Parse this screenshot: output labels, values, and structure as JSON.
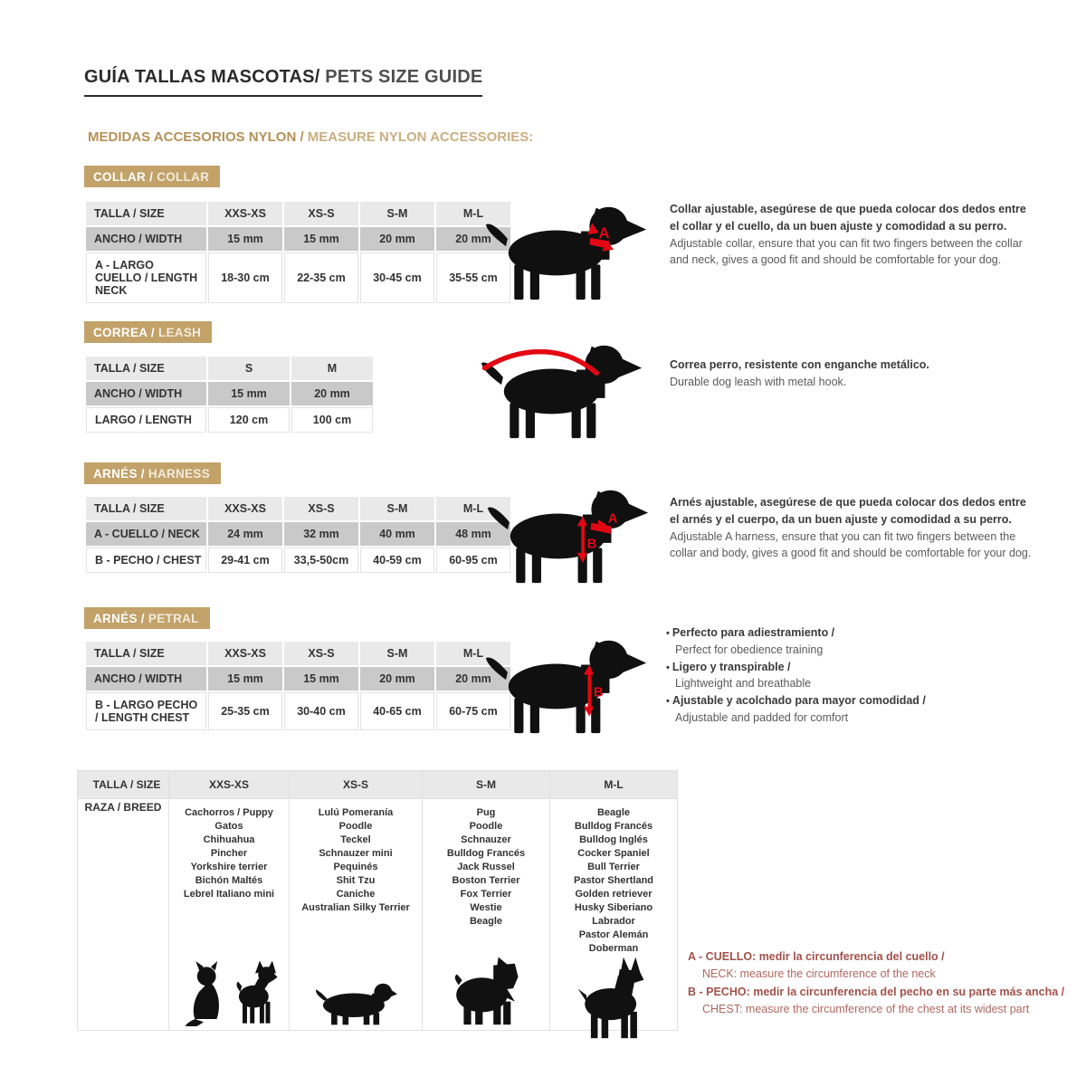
{
  "page": {
    "title_es": "GUÍA TALLAS MASCOTAS/",
    "title_en": " PETS SIZE GUIDE",
    "subtitle_es": "MEDIDAS ACCESORIOS NYLON /",
    "subtitle_en": " MEASURE NYLON ACCESSORIES:"
  },
  "colors": {
    "accent_tan": "#c2a269",
    "marker_red": "#e30613",
    "note_red": "#a2524b",
    "row_shade": "#c9c9c9",
    "row_head": "#e9e9e9"
  },
  "sections": {
    "collar": {
      "badge_es": "COLLAR /",
      "badge_en": " COLLAR",
      "marker": "A",
      "table": {
        "size_label": "TALLA / SIZE",
        "sizes": [
          "XXS-XS",
          "XS-S",
          "S-M",
          "M-L"
        ],
        "rows": [
          {
            "label": "ANCHO / WIDTH",
            "cells": [
              "15 mm",
              "15 mm",
              "20 mm",
              "20 mm"
            ]
          },
          {
            "label": "A - LARGO CUELLO / LENGTH NECK",
            "cells": [
              "18-30 cm",
              "22-35 cm",
              "30-45 cm",
              "35-55 cm"
            ]
          }
        ]
      },
      "desc_es": "Collar ajustable, asegúrese de que pueda colocar dos dedos entre el collar y el cuello, da un buen ajuste y comodidad a su perro.",
      "desc_en": "Adjustable collar, ensure that you can fit two fingers between the collar and neck, gives a good fit and should be comfortable for your dog."
    },
    "leash": {
      "badge_es": "CORREA /",
      "badge_en": " LEASH",
      "table": {
        "size_label": "TALLA / SIZE",
        "sizes": [
          "S",
          "M"
        ],
        "rows": [
          {
            "label": "ANCHO / WIDTH",
            "cells": [
              "15 mm",
              "20 mm"
            ]
          },
          {
            "label": "LARGO / LENGTH",
            "cells": [
              "120 cm",
              "100 cm"
            ]
          }
        ]
      },
      "desc_es": "Correa perro, resistente con enganche metálico.",
      "desc_en": "Durable dog leash with metal hook."
    },
    "harness": {
      "badge_es": "ARNÉS /",
      "badge_en": " HARNESS",
      "marker_a": "A",
      "marker_b": "B",
      "table": {
        "size_label": "TALLA / SIZE",
        "sizes": [
          "XXS-XS",
          "XS-S",
          "S-M",
          "M-L"
        ],
        "rows": [
          {
            "label": "A - CUELLO / NECK",
            "cells": [
              "24 mm",
              "32 mm",
              "40 mm",
              "48 mm"
            ]
          },
          {
            "label": "B - PECHO / CHEST",
            "cells": [
              "29-41 cm",
              "33,5-50cm",
              "40-59 cm",
              "60-95 cm"
            ]
          }
        ]
      },
      "desc_es": "Arnés ajustable, asegúrese de que pueda colocar dos dedos entre el arnés y el cuerpo, da un buen ajuste y comodidad a su perro.",
      "desc_en": "Adjustable A harness, ensure that you can fit two fingers between the collar and body, gives a good fit and should be comfortable for your dog."
    },
    "petral": {
      "badge_es": "ARNÉS /",
      "badge_en": " PETRAL",
      "marker": "B",
      "table": {
        "size_label": "TALLA / SIZE",
        "sizes": [
          "XXS-XS",
          "XS-S",
          "S-M",
          "M-L"
        ],
        "rows": [
          {
            "label": "ANCHO / WIDTH",
            "cells": [
              "15 mm",
              "15 mm",
              "20 mm",
              "20 mm"
            ]
          },
          {
            "label": "B - LARGO PECHO / LENGTH CHEST",
            "cells": [
              "25-35 cm",
              "30-40 cm",
              "40-65 cm",
              "60-75 cm"
            ]
          }
        ]
      },
      "bullets": [
        {
          "es": "Perfecto para adiestramiento /",
          "en": "Perfect for obedience training"
        },
        {
          "es": "Ligero y transpirable /",
          "en": "Lightweight and breathable"
        },
        {
          "es": "Ajustable y acolchado para mayor comodidad /",
          "en": "Adjustable and padded for comfort"
        }
      ]
    }
  },
  "breed_table": {
    "size_label": "TALLA /  SIZE",
    "sizes": [
      "XXS-XS",
      "XS-S",
      "S-M",
      "M-L"
    ],
    "row_label": "RAZA / BREED",
    "columns": [
      {
        "size": "XXS-XS",
        "breeds": [
          "Cachorros / Puppy",
          "Gatos",
          "Chihuahua",
          "Pincher",
          "Yorkshire terrier",
          "Bichón Maltés",
          "Lebrel Italiano mini"
        ],
        "icons": [
          "cat",
          "chihuahua"
        ]
      },
      {
        "size": "XS-S",
        "breeds": [
          "Lulú Pomeranía",
          "Poodle",
          "Teckel",
          "Schnauzer mini",
          "Pequinés",
          "Shit Tzu",
          "Caniche",
          "Australian Silky Terrier"
        ],
        "icons": [
          "dachshund"
        ]
      },
      {
        "size": "S-M",
        "breeds": [
          "Pug",
          "Poodle",
          "Schnauzer",
          "Bulldog Francés",
          "Jack Russel",
          "Boston Terrier",
          "Fox Terrier",
          "Westie",
          "Beagle"
        ],
        "icons": [
          "schnauzer"
        ]
      },
      {
        "size": "M-L",
        "breeds": [
          "Beagle",
          "Bulldog Francés",
          "Bulldog Inglés",
          "Cocker Spaniel",
          "Bull Terrier",
          "Pastor Shertland",
          "Golden retriever",
          "Husky Siberiano",
          "Labrador",
          "Pastor Alemán",
          "Doberman"
        ],
        "icons": [
          "doberman"
        ]
      }
    ]
  },
  "notes": {
    "a_es": "A - CUELLO: medir la circunferencia del cuello /",
    "a_en": "NECK: measure the circumference of the neck",
    "b_es": "B - PECHO: medir la circunferencia del pecho en su parte más ancha /",
    "b_en": "CHEST: measure the circumference of the chest at its widest part"
  }
}
